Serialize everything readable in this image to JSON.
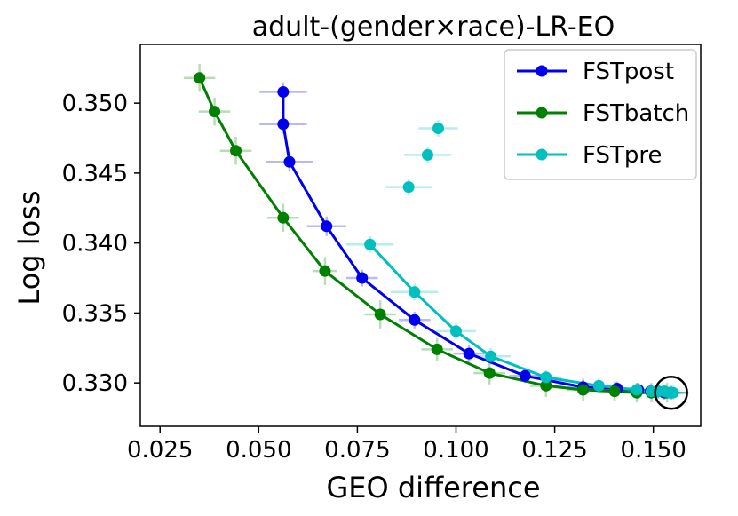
{
  "chart_data": {
    "type": "line",
    "title": "adult-(gender×race)-LR-EO",
    "xlabel": "GEO difference",
    "ylabel": "Log loss",
    "xlim": [
      0.02,
      0.162
    ],
    "ylim": [
      0.3269,
      0.3542
    ],
    "xticks": [
      0.025,
      0.05,
      0.075,
      0.1,
      0.125,
      0.15
    ],
    "xtick_labels": [
      "0.025",
      "0.050",
      "0.075",
      "0.100",
      "0.125",
      "0.150"
    ],
    "yticks": [
      0.33,
      0.335,
      0.34,
      0.345,
      0.35
    ],
    "ytick_labels": [
      "0.330",
      "0.335",
      "0.340",
      "0.345",
      "0.350"
    ],
    "grid": false,
    "legend_position": "top-right",
    "series": [
      {
        "name": "FSTpost",
        "color": "#0000ee",
        "connected_points": 15,
        "x": [
          0.0562,
          0.0562,
          0.0578,
          0.0672,
          0.0762,
          0.0895,
          0.1033,
          0.1175,
          0.1322,
          0.1408,
          0.1462,
          0.1493,
          0.1512,
          0.1528,
          0.1545
        ],
        "y": [
          0.3508,
          0.3485,
          0.3458,
          0.3412,
          0.3375,
          0.3345,
          0.3321,
          0.3305,
          0.3297,
          0.3296,
          0.3295,
          0.3294,
          0.3294,
          0.3293,
          0.3293
        ],
        "xerr": [
          0.006,
          0.006,
          0.006,
          0.005,
          0.004,
          0.004,
          0.004,
          0.004,
          0.004,
          0.004,
          0.004,
          0.004,
          0.004,
          0.004,
          0.004
        ],
        "yerr": [
          0.0007,
          0.0007,
          0.0007,
          0.0007,
          0.0006,
          0.0006,
          0.0006,
          0.0005,
          0.0005,
          0.0005,
          0.0005,
          0.0005,
          0.0005,
          0.0005,
          0.0005
        ]
      },
      {
        "name": "FSTbatch",
        "color": "#008000",
        "connected_points": 14,
        "x": [
          0.035,
          0.0388,
          0.0442,
          0.0562,
          0.0668,
          0.0808,
          0.0952,
          0.1085,
          0.1228,
          0.1322,
          0.1402,
          0.1458,
          0.1495,
          0.1535
        ],
        "y": [
          0.3518,
          0.3494,
          0.3466,
          0.3418,
          0.338,
          0.3349,
          0.3324,
          0.3307,
          0.3298,
          0.3295,
          0.3294,
          0.3293,
          0.3293,
          0.3293
        ],
        "xerr": [
          0.004,
          0.004,
          0.004,
          0.004,
          0.003,
          0.004,
          0.004,
          0.004,
          0.004,
          0.004,
          0.004,
          0.004,
          0.004,
          0.004
        ],
        "yerr": [
          0.001,
          0.001,
          0.001,
          0.001,
          0.001,
          0.001,
          0.0008,
          0.0008,
          0.0008,
          0.0008,
          0.0007,
          0.0007,
          0.0007,
          0.0007
        ]
      },
      {
        "name": "FSTpre",
        "color": "#00bfbf",
        "connected_points": 12,
        "x": [
          0.0782,
          0.0895,
          0.1,
          0.1088,
          0.1228,
          0.1362,
          0.1458,
          0.1495,
          0.1512,
          0.1528,
          0.1542,
          0.155,
          0.088,
          0.0928,
          0.0955
        ],
        "y": [
          0.3399,
          0.3365,
          0.3337,
          0.3319,
          0.3304,
          0.3298,
          0.3295,
          0.3294,
          0.3294,
          0.3294,
          0.3293,
          0.3293,
          0.344,
          0.3463,
          0.3482
        ],
        "xerr": [
          0.006,
          0.006,
          0.005,
          0.005,
          0.004,
          0.004,
          0.004,
          0.004,
          0.004,
          0.004,
          0.004,
          0.004,
          0.006,
          0.006,
          0.005
        ],
        "yerr": [
          0.0006,
          0.0006,
          0.0006,
          0.0006,
          0.0005,
          0.0005,
          0.0005,
          0.0005,
          0.0005,
          0.0005,
          0.0005,
          0.0005,
          0.0006,
          0.0006,
          0.0006
        ]
      }
    ],
    "annotations": [
      {
        "type": "circle",
        "x": 0.1545,
        "y": 0.3293,
        "color": "#000000"
      }
    ]
  }
}
